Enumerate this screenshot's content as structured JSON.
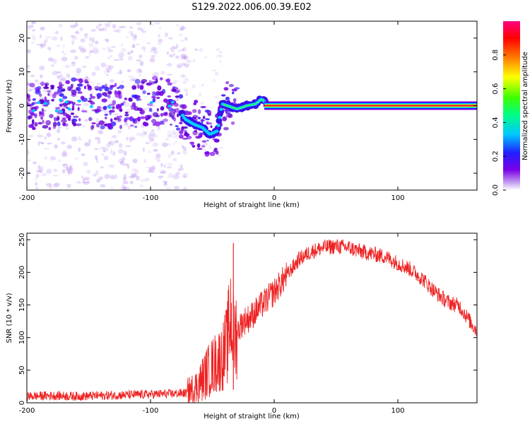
{
  "title": "S129.2022.006.00.39.E02",
  "chart_data": [
    {
      "type": "heatmap",
      "xlabel": "Height of straight line (km)",
      "ylabel": "Frequency (Hz)",
      "xlim": [
        -200,
        164
      ],
      "ylim": [
        -25,
        25
      ],
      "x_ticks": [
        -200,
        -100,
        0,
        100
      ],
      "y_ticks": [
        -20,
        -10,
        0,
        10,
        20
      ],
      "colorbar": {
        "label": "Normalized spectral amplitude",
        "range": [
          0.0,
          1.0
        ],
        "ticks": [
          0.0,
          0.2,
          0.4,
          0.6,
          0.8
        ],
        "colormap": [
          "#ffffff",
          "#c8a8f0",
          "#7a00e6",
          "#2020ff",
          "#00c8ff",
          "#00ff80",
          "#40ff00",
          "#ffff00",
          "#ff8000",
          "#ff0000",
          "#ff0080"
        ]
      },
      "peak_track": {
        "x": [
          -200,
          -180,
          -160,
          -140,
          -120,
          -100,
          -80,
          -72,
          -65,
          -58,
          -52,
          -46,
          -42,
          -38,
          -30,
          -22,
          -15,
          -10,
          -6,
          0,
          50,
          100,
          164
        ],
        "y": [
          0.5,
          -0.5,
          1.0,
          0.0,
          -1.0,
          1.5,
          0.5,
          -4.0,
          -5.5,
          -6.5,
          -8.5,
          -7.5,
          0.5,
          0.0,
          -1.0,
          0.0,
          0.5,
          2.0,
          0.5,
          0.0,
          0.0,
          0.0,
          0.0
        ]
      }
    },
    {
      "type": "line",
      "xlabel": "Height of straight line (km)",
      "ylabel": "SNR (10 * v/v)",
      "xlim": [
        -200,
        164
      ],
      "ylim": [
        0,
        260
      ],
      "x_ticks": [
        -200,
        -100,
        0,
        100
      ],
      "y_ticks": [
        0,
        50,
        100,
        150,
        200,
        250
      ],
      "series": [
        {
          "color": "#ee2222",
          "x": [
            -200,
            -180,
            -160,
            -140,
            -120,
            -100,
            -80,
            -70,
            -62,
            -55,
            -48,
            -42,
            -38,
            -35,
            -33,
            -30,
            -25,
            -20,
            -10,
            0,
            10,
            20,
            30,
            40,
            50,
            60,
            70,
            80,
            90,
            100,
            110,
            120,
            130,
            140,
            150,
            160,
            164
          ],
          "y": [
            10,
            11,
            10,
            11,
            12,
            13,
            14,
            15,
            25,
            45,
            60,
            70,
            90,
            140,
            100,
            110,
            125,
            130,
            150,
            170,
            195,
            220,
            232,
            238,
            240,
            238,
            232,
            228,
            224,
            214,
            205,
            190,
            170,
            155,
            148,
            120,
            110
          ]
        }
      ],
      "annotations": [
        {
          "x": -33,
          "y": 245,
          "text": ""
        }
      ]
    }
  ]
}
